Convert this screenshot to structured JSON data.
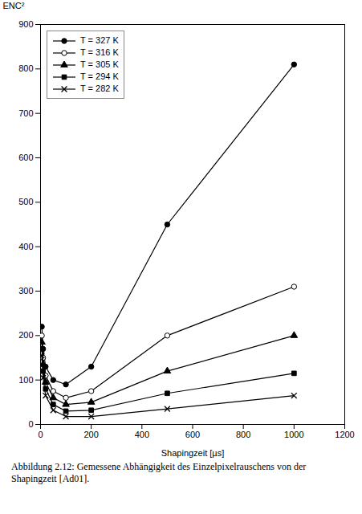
{
  "chart_data": {
    "type": "line",
    "caption": "Abbildung 2.12: Gemessene Abhängigkeit des Einzelpixelrauschens von der Shapingzeit [Ad01].",
    "x_label": "Shapingzeit [µs]",
    "y_label": "ENC²",
    "x": [
      5,
      10,
      20,
      50,
      100,
      200,
      500,
      1000
    ],
    "series": [
      {
        "name": "T = 327 K",
        "color": "black",
        "marker": "circle",
        "line_style": "solid",
        "values": [
          220,
          170,
          130,
          100,
          90,
          130,
          450,
          810
        ]
      },
      {
        "name": "T = 316 K",
        "color": "black",
        "marker": "circle-open",
        "line_style": "solid",
        "values": [
          200,
          150,
          110,
          75,
          60,
          75,
          200,
          310
        ]
      },
      {
        "name": "T = 305 K",
        "color": "black",
        "marker": "triangle",
        "line_style": "solid",
        "values": [
          185,
          135,
          95,
          60,
          45,
          50,
          120,
          200
        ]
      },
      {
        "name": "T = 294 K",
        "color": "black",
        "marker": "square",
        "line_style": "solid",
        "values": [
          170,
          120,
          80,
          45,
          30,
          32,
          70,
          115
        ]
      },
      {
        "name": "T = 282 K",
        "color": "black",
        "marker": "cross",
        "line_style": "solid",
        "values": [
          155,
          105,
          65,
          32,
          18,
          18,
          35,
          65
        ]
      }
    ],
    "xlim": [
      0,
      1200
    ],
    "ylim": [
      0,
      900
    ],
    "xticks": [
      0,
      200,
      400,
      600,
      800,
      1000,
      1200
    ],
    "yticks": [
      0,
      100,
      200,
      300,
      400,
      500,
      600,
      700,
      800,
      900
    ],
    "grid": false,
    "legend": "upper left"
  }
}
